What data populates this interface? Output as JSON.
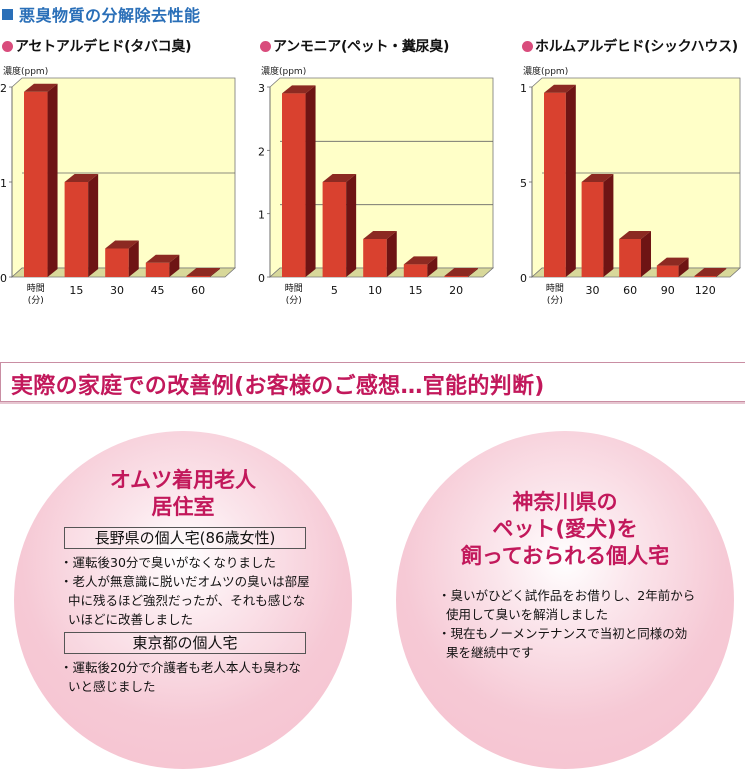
{
  "section_title": "悪臭物質の分解除去性能",
  "unit_label": "濃度(ppm)",
  "x_axis_first_label_line1": "時間",
  "x_axis_first_label_line2": "(分)",
  "chart_data": [
    {
      "type": "bar",
      "title": "アセトアルデヒド(タバコ臭)",
      "xlabel": "時間(分)",
      "ylabel": "濃度(ppm)",
      "categories": [
        "0",
        "15",
        "30",
        "45",
        "60"
      ],
      "x_tick_labels": [
        "時間(分)",
        "15",
        "30",
        "45",
        "60"
      ],
      "values": [
        1.95,
        1.0,
        0.3,
        0.15,
        0.0
      ],
      "ylim": [
        0,
        2
      ],
      "y_ticks": [
        "0",
        "1",
        "2"
      ],
      "grid": true,
      "style": "3d-bar"
    },
    {
      "type": "bar",
      "title": "アンモニア(ペット・糞尿臭)",
      "xlabel": "時間(分)",
      "ylabel": "濃度(ppm)",
      "categories": [
        "0",
        "5",
        "10",
        "15",
        "20"
      ],
      "x_tick_labels": [
        "時間(分)",
        "5",
        "10",
        "15",
        "20"
      ],
      "values": [
        2.9,
        1.5,
        0.6,
        0.2,
        0.0
      ],
      "ylim": [
        0,
        3
      ],
      "y_ticks": [
        "0",
        "1",
        "2",
        "3"
      ],
      "grid": true,
      "style": "3d-bar"
    },
    {
      "type": "bar",
      "title": "ホルムアルデヒド(シックハウス)",
      "xlabel": "時間(分)",
      "ylabel": "濃度(ppm)",
      "categories": [
        "0",
        "30",
        "60",
        "90",
        "120"
      ],
      "x_tick_labels": [
        "時間(分)",
        "30",
        "60",
        "90",
        "120"
      ],
      "values": [
        0.97,
        0.5,
        0.2,
        0.06,
        0.0
      ],
      "ylim": [
        0,
        1
      ],
      "y_ticks": [
        "0",
        "0.5",
        "1"
      ],
      "grid": true,
      "style": "3d-bar"
    }
  ],
  "colors": {
    "accent_blue": "#2a6fb8",
    "title_magenta": "#c2185b",
    "bullet_dot": "#d94c7c",
    "plot_bg": "#ffffc8",
    "bar_front": "#d9412f",
    "bar_side": "#6e1414",
    "bar_top": "#8c2a22",
    "circle_pink": "#f5c1cf"
  },
  "banner": "実際の家庭での改善例(お客様のご感想…官能的判断)",
  "cases": [
    {
      "title_lines": [
        "オムツ着用老人",
        "居住室"
      ],
      "subsections": [
        {
          "heading": "長野県の個人宅(86歳女性)",
          "bullets": [
            "・運転後30分で臭いがなくなりました",
            "・老人が無意識に脱いだオムツの臭いは部屋中に残るほど強烈だったが、それも感じないほどに改善しました"
          ]
        },
        {
          "heading": "東京都の個人宅",
          "bullets": [
            "・運転後20分で介護者も老人本人も臭わないと感じました"
          ]
        }
      ]
    },
    {
      "title_lines": [
        "神奈川県の",
        "ペット(愛犬)を",
        "飼っておられる個人宅"
      ],
      "bullets": [
        "・臭いがひどく試作品をお借りし、2年前から使用して臭いを解消しました",
        "・現在もノーメンテナンスで当初と同様の効果を継続中です"
      ]
    }
  ]
}
